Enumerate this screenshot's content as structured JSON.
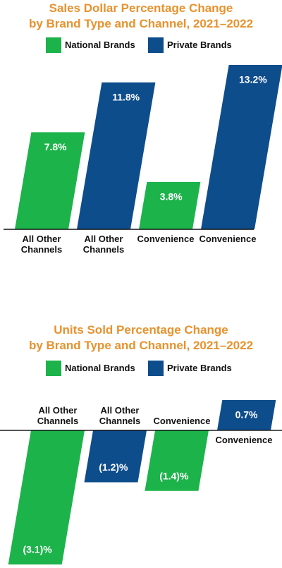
{
  "chart_data": [
    {
      "type": "bar",
      "title": [
        "Sales Dollar Percentage Change",
        "by Brand Type and Channel, 2021–2022"
      ],
      "categories": [
        "All Other Channels",
        "All Other Channels",
        "Convenience",
        "Convenience"
      ],
      "series": [
        {
          "name": "National Brands",
          "color": "#1db34b",
          "values": [
            7.8,
            null,
            3.8,
            null
          ],
          "value_labels": [
            "7.8%",
            null,
            "3.8%",
            null
          ]
        },
        {
          "name": "Private Brands",
          "color": "#0e4d8c",
          "values": [
            null,
            11.8,
            null,
            13.2
          ],
          "value_labels": [
            null,
            "11.8%",
            null,
            "13.2%"
          ]
        }
      ],
      "ylim": [
        0,
        13.2
      ],
      "legend": "top"
    },
    {
      "type": "bar",
      "title": [
        "Units Sold Percentage Change",
        "by Brand Type and Channel, 2021–2022"
      ],
      "categories": [
        "All Other Channels",
        "All Other Channels",
        "Convenience",
        "Convenience"
      ],
      "series": [
        {
          "name": "National Brands",
          "color": "#1db34b",
          "values": [
            -3.1,
            null,
            -1.4,
            null
          ],
          "value_labels": [
            "(3.1)%",
            null,
            "(1.4)%",
            null
          ]
        },
        {
          "name": "Private Brands",
          "color": "#0e4d8c",
          "values": [
            null,
            -1.2,
            null,
            0.7
          ],
          "value_labels": [
            null,
            "(1.2)%",
            null,
            "0.7%"
          ]
        }
      ],
      "ylim": [
        -3.1,
        0.7
      ],
      "legend": "top"
    }
  ]
}
